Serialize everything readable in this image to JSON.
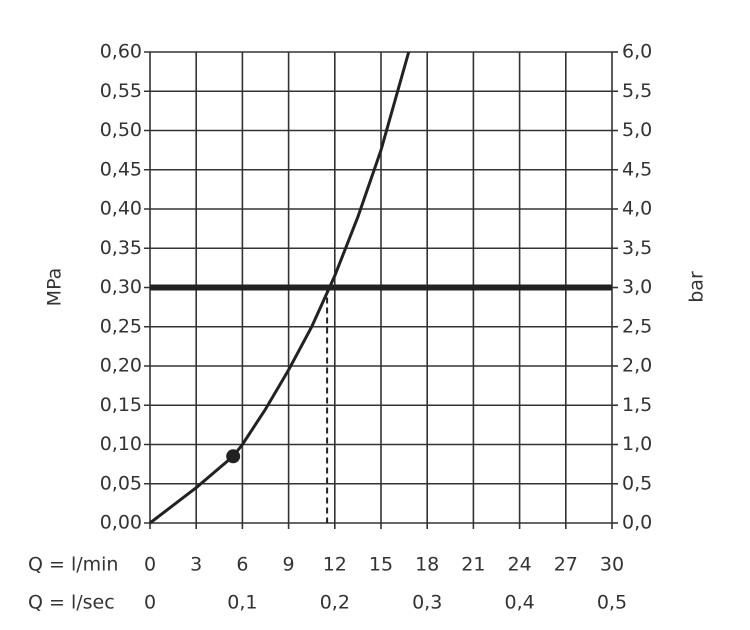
{
  "chart_data": {
    "type": "line",
    "y_label": "MPa",
    "y2_label": "bar",
    "x_row_label": "Q = l/min",
    "x2_row_label": "Q = l/sec",
    "x": [
      0,
      3,
      5.4,
      6,
      7.5,
      9,
      10.5,
      12,
      13.5,
      15,
      16.8
    ],
    "values": [
      0,
      0.045,
      0.085,
      0.1,
      0.145,
      0.195,
      0.25,
      0.315,
      0.39,
      0.475,
      0.6
    ],
    "color": "#222222",
    "marker": {
      "x": 5.4,
      "y": 0.085
    },
    "reference_y": 0.3,
    "reference_x": 11.5,
    "xlim": [
      0,
      30
    ],
    "xticks": [
      0,
      3,
      6,
      9,
      12,
      15,
      18,
      21,
      24,
      27,
      30
    ],
    "x2lim": [
      0,
      0.5
    ],
    "x2ticks": [
      0,
      {
        "value": 0.1,
        "label": "0,1"
      },
      {
        "value": 0.2,
        "label": "0,2"
      },
      {
        "value": 0.3,
        "label": "0,3"
      },
      {
        "value": 0.4,
        "label": "0,4"
      },
      {
        "value": 0.5,
        "label": "0,5"
      }
    ],
    "ylim": [
      0,
      0.6
    ],
    "yticks": [
      {
        "value": 0,
        "label": "0,00"
      },
      {
        "value": 0.05,
        "label": "0,05"
      },
      {
        "value": 0.1,
        "label": "0,10"
      },
      {
        "value": 0.15,
        "label": "0,15"
      },
      {
        "value": 0.2,
        "label": "0,20"
      },
      {
        "value": 0.25,
        "label": "0,25"
      },
      {
        "value": 0.3,
        "label": "0,30"
      },
      {
        "value": 0.35,
        "label": "0,35"
      },
      {
        "value": 0.4,
        "label": "0,40"
      },
      {
        "value": 0.45,
        "label": "0,45"
      },
      {
        "value": 0.5,
        "label": "0,50"
      },
      {
        "value": 0.55,
        "label": "0,55"
      },
      {
        "value": 0.6,
        "label": "0,60"
      }
    ],
    "y2lim": [
      0,
      6
    ],
    "y2ticks": [
      {
        "value": 0,
        "label": "0,0"
      },
      {
        "value": 0.5,
        "label": "0,5"
      },
      {
        "value": 1,
        "label": "1,0"
      },
      {
        "value": 1.5,
        "label": "1,5"
      },
      {
        "value": 2,
        "label": "2,0"
      },
      {
        "value": 2.5,
        "label": "2,5"
      },
      {
        "value": 3,
        "label": "3,0"
      },
      {
        "value": 3.5,
        "label": "3,5"
      },
      {
        "value": 4,
        "label": "4,0"
      },
      {
        "value": 4.5,
        "label": "4,5"
      },
      {
        "value": 5,
        "label": "5,0"
      },
      {
        "value": 5.5,
        "label": "5,5"
      },
      {
        "value": 6,
        "label": "6,0"
      }
    ],
    "grid": true
  }
}
